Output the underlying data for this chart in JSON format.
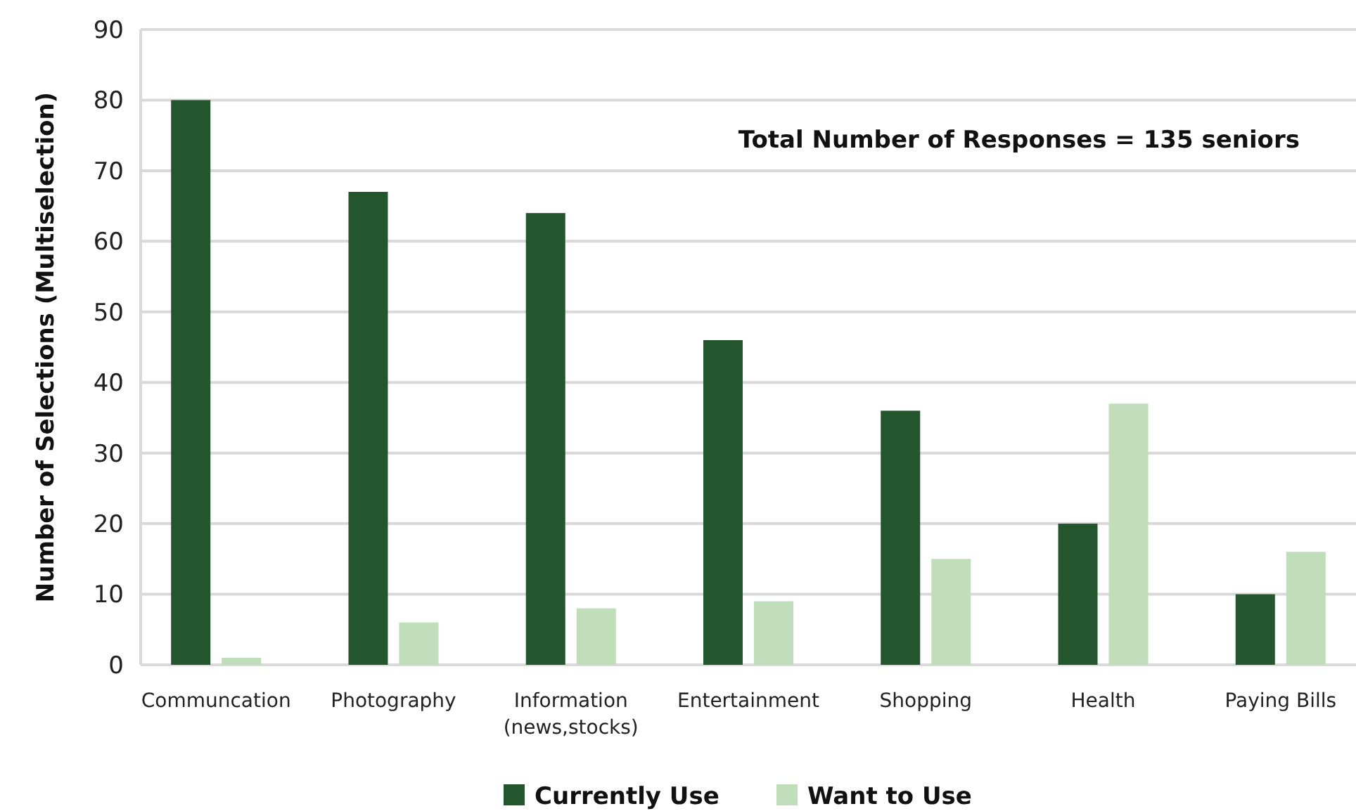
{
  "chart_data": {
    "type": "bar",
    "ylabel": "Number of Selections (Multiselection)",
    "categories": [
      "Communcation",
      "Photography",
      "Information (news,stocks)",
      "Entertainment",
      "Shopping",
      "Health",
      "Paying Bills"
    ],
    "series": [
      {
        "name": "Currently Use",
        "color": "#24562e",
        "values": [
          80,
          67,
          64,
          46,
          36,
          20,
          10
        ]
      },
      {
        "name": "Want to Use",
        "color": "#bfdeb9",
        "values": [
          1,
          6,
          8,
          9,
          15,
          37,
          16
        ]
      }
    ],
    "ylim": [
      0,
      90
    ],
    "yticks": [
      0,
      10,
      20,
      30,
      40,
      50,
      60,
      70,
      80,
      90
    ],
    "grid": "y",
    "legend": "bottom",
    "annotations": [
      "Total Number of Responses = 135 seniors"
    ]
  }
}
